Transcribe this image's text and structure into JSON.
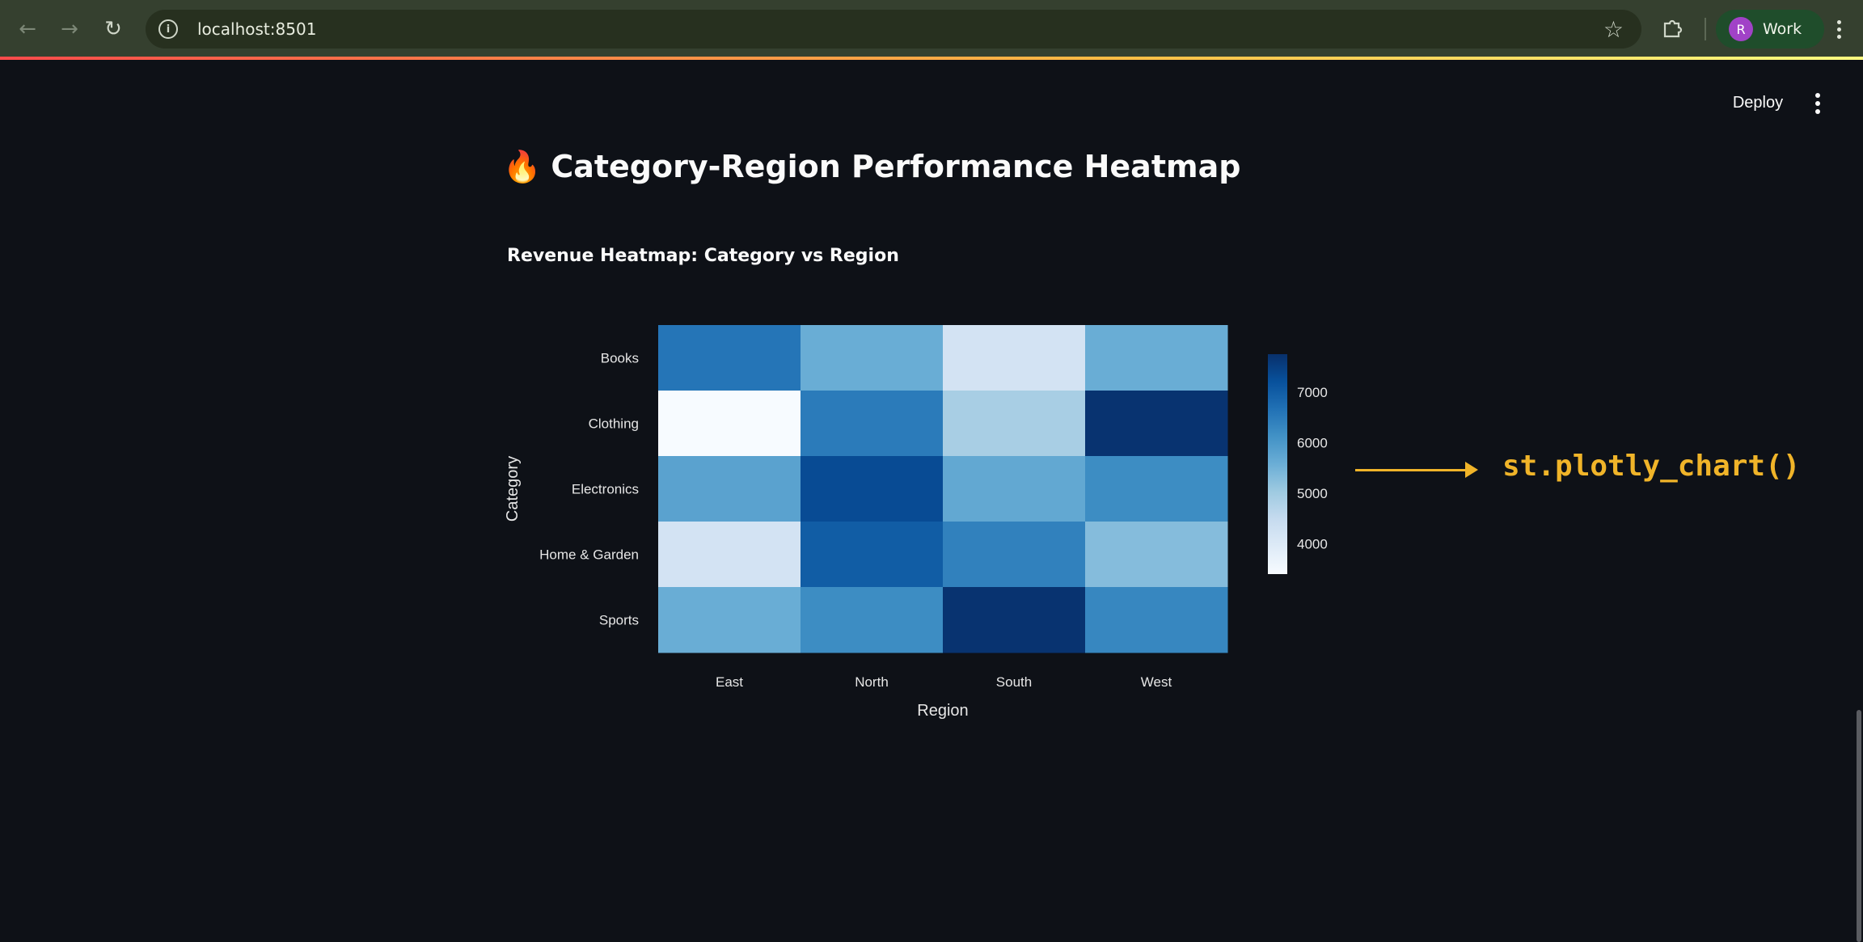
{
  "browser": {
    "url": "localhost:8501",
    "profile_initial": "R",
    "profile_name": "Work",
    "accent_color": "#ff4b4b"
  },
  "app": {
    "deploy_label": "Deploy",
    "title_icon": "🔥",
    "title": "Category-Region Performance Heatmap",
    "subtitle": "Revenue Heatmap: Category vs Region"
  },
  "annotation": {
    "label": "st.plotly_chart()",
    "color": "#f0b429"
  },
  "chart_data": {
    "type": "heatmap",
    "title": "",
    "xlabel": "Region",
    "ylabel": "Category",
    "x": [
      "East",
      "North",
      "South",
      "West"
    ],
    "y": [
      "Books",
      "Clothing",
      "Electronics",
      "Home & Garden",
      "Sports"
    ],
    "z": [
      [
        6600,
        5600,
        4200,
        5600
      ],
      [
        3400,
        6500,
        4900,
        7700
      ],
      [
        5800,
        7300,
        5700,
        6200
      ],
      [
        4200,
        7000,
        6400,
        5300
      ],
      [
        5600,
        6200,
        7700,
        6300
      ]
    ],
    "colorscale": "Blues",
    "zmin": 3400,
    "zmax": 7750,
    "colorbar_ticks": [
      7000,
      6000,
      5000,
      4000
    ]
  }
}
